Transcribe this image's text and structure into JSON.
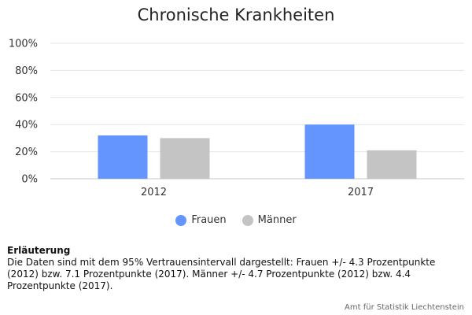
{
  "chart_data": {
    "type": "bar",
    "title": "Chronische Krankheiten",
    "categories": [
      "2012",
      "2017"
    ],
    "series": [
      {
        "name": "Frauen",
        "values": [
          32,
          40
        ],
        "color": "#6495ff"
      },
      {
        "name": "Männer",
        "values": [
          30,
          21
        ],
        "color": "#c4c4c4"
      }
    ],
    "ylim": [
      0,
      100
    ],
    "yticks": [
      "0%",
      "20%",
      "40%",
      "60%",
      "80%",
      "100%"
    ],
    "grid": true,
    "legend_position": "bottom"
  },
  "note": {
    "title": "Erläuterung",
    "text": "Die Daten sind mit dem 95% Vertrauensintervall dargestellt: Frauen +/- 4.3 Prozentpunkte (2012) bzw. 7.1 Prozentpunkte (2017). Männer +/- 4.7 Prozentpunkte (2012) bzw. 4.4 Prozentpunkte (2017)."
  },
  "credits": "Amt für Statistik Liechtenstein"
}
